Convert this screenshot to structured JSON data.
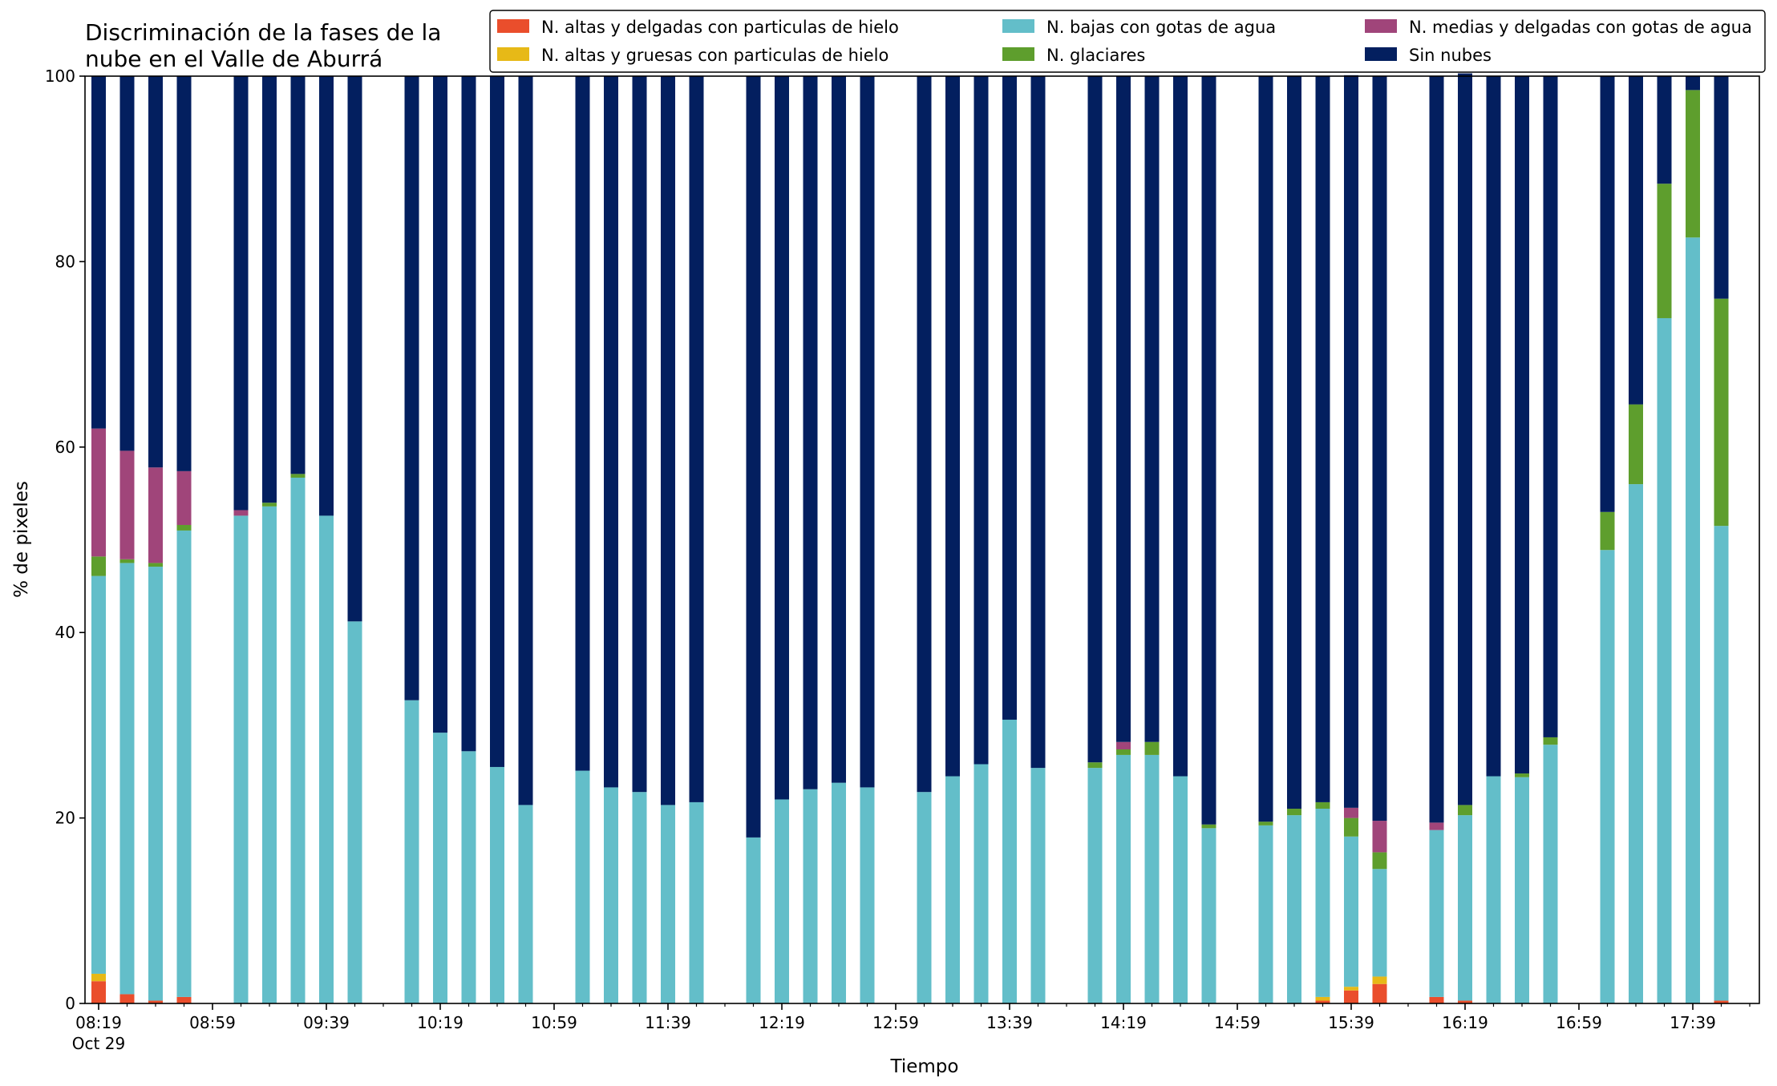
{
  "chart_data": {
    "type": "bar",
    "stacked": true,
    "title": "Discriminación de la fases de la nube en el Valle de Aburrá",
    "title_lines": [
      "Discriminación de la fases de la",
      "nube en el Valle de Aburrá"
    ],
    "xlabel": "Tiempo",
    "ylabel": "% de pixeles",
    "ylim": [
      0,
      100
    ],
    "yticks": [
      0,
      20,
      40,
      60,
      80,
      100
    ],
    "xlim_minutes": [
      0,
      580
    ],
    "xticks": [
      {
        "minute": 0,
        "label": "08:19",
        "sublabel": "Oct 29"
      },
      {
        "minute": 40,
        "label": "08:59"
      },
      {
        "minute": 80,
        "label": "09:39"
      },
      {
        "minute": 120,
        "label": "10:19"
      },
      {
        "minute": 160,
        "label": "10:59"
      },
      {
        "minute": 200,
        "label": "11:39"
      },
      {
        "minute": 240,
        "label": "12:19"
      },
      {
        "minute": 280,
        "label": "12:59"
      },
      {
        "minute": 320,
        "label": "13:39"
      },
      {
        "minute": 360,
        "label": "14:19"
      },
      {
        "minute": 400,
        "label": "14:59"
      },
      {
        "minute": 440,
        "label": "15:39"
      },
      {
        "minute": 480,
        "label": "16:19"
      },
      {
        "minute": 520,
        "label": "16:59"
      },
      {
        "minute": 560,
        "label": "17:39"
      }
    ],
    "x_minutes": [
      0,
      10,
      20,
      30,
      50,
      60,
      70,
      80,
      90,
      110,
      120,
      130,
      140,
      150,
      170,
      180,
      190,
      200,
      210,
      230,
      240,
      250,
      260,
      270,
      290,
      300,
      310,
      320,
      330,
      350,
      360,
      370,
      380,
      390,
      410,
      420,
      430,
      440,
      450,
      470,
      480,
      490,
      500,
      510,
      530,
      540,
      550,
      560,
      570
    ],
    "legend_position": "top-right",
    "series": [
      {
        "name": "N. altas y delgadas con particulas de hielo",
        "color": "#ea4e2c",
        "values": [
          2.4,
          1.0,
          0.3,
          0.7,
          0,
          0,
          0,
          0,
          0,
          0,
          0,
          0,
          0,
          0,
          0,
          0,
          0,
          0,
          0,
          0,
          0,
          0,
          0,
          0,
          0,
          0,
          0,
          0,
          0,
          0,
          0,
          0,
          0,
          0,
          0,
          0,
          0.3,
          1.4,
          2.1,
          0.7,
          0.3,
          0,
          0,
          0,
          0,
          0,
          0,
          0,
          0.3
        ]
      },
      {
        "name": "N. altas y gruesas con particulas de hielo",
        "color": "#e7b917",
        "values": [
          0.8,
          0,
          0,
          0,
          0,
          0,
          0,
          0,
          0,
          0,
          0,
          0,
          0,
          0,
          0,
          0,
          0,
          0,
          0,
          0,
          0,
          0,
          0,
          0,
          0,
          0,
          0,
          0,
          0,
          0,
          0,
          0,
          0,
          0,
          0,
          0,
          0.4,
          0.4,
          0.8,
          0,
          0,
          0,
          0,
          0,
          0,
          0,
          0,
          0,
          0
        ]
      },
      {
        "name": "N. bajas con gotas de agua",
        "color": "#63bec9",
        "values": [
          42.9,
          46.5,
          46.8,
          50.3,
          52.6,
          53.6,
          56.7,
          52.6,
          41.2,
          32.7,
          29.2,
          27.2,
          25.5,
          21.4,
          25.1,
          23.3,
          22.8,
          21.4,
          21.7,
          17.9,
          22.0,
          23.1,
          23.8,
          23.3,
          22.8,
          24.5,
          25.8,
          30.6,
          25.4,
          25.4,
          26.8,
          26.8,
          24.5,
          18.9,
          19.2,
          20.3,
          20.3,
          16.2,
          11.6,
          18.0,
          20.0,
          24.5,
          24.4,
          27.9,
          48.9,
          56.0,
          73.9,
          82.6,
          51.2
        ]
      },
      {
        "name": "N. glaciares",
        "color": "#5e9e2d",
        "values": [
          2.1,
          0.4,
          0.4,
          0.6,
          0,
          0.4,
          0.4,
          0,
          0,
          0,
          0,
          0,
          0,
          0,
          0,
          0,
          0,
          0,
          0,
          0,
          0,
          0,
          0,
          0,
          0,
          0,
          0,
          0,
          0,
          0.6,
          0.6,
          1.4,
          0,
          0.4,
          0.4,
          0.7,
          0.7,
          2.0,
          1.8,
          0,
          1.1,
          0,
          0.4,
          0.8,
          4.1,
          8.6,
          14.5,
          15.9,
          24.5
        ]
      },
      {
        "name": "N. medias y delgadas con gotas de agua",
        "color": "#a0457a",
        "values": [
          13.8,
          11.7,
          10.3,
          5.8,
          0.6,
          0,
          0,
          0,
          0,
          0,
          0,
          0,
          0,
          0,
          0,
          0,
          0,
          0,
          0,
          0,
          0,
          0,
          0,
          0,
          0,
          0,
          0,
          0,
          0,
          0,
          0.8,
          0,
          0,
          0,
          0,
          0,
          0,
          1.1,
          3.4,
          0.8,
          0,
          0,
          0,
          0,
          0,
          0,
          0,
          0,
          0
        ]
      },
      {
        "name": "Sin nubes",
        "color": "#031f5f",
        "values": [
          38.0,
          40.4,
          42.2,
          42.6,
          46.8,
          46.0,
          42.9,
          47.4,
          58.8,
          67.3,
          70.8,
          72.8,
          74.5,
          78.6,
          74.9,
          76.7,
          77.2,
          78.6,
          78.3,
          82.1,
          78.0,
          76.9,
          76.2,
          76.7,
          77.2,
          75.5,
          74.2,
          69.4,
          74.6,
          74.0,
          71.8,
          71.8,
          75.5,
          80.7,
          80.4,
          79.0,
          78.3,
          79.0,
          80.3,
          80.5,
          78.9,
          75.5,
          75.2,
          71.3,
          47.0,
          35.4,
          11.6,
          1.5,
          24.0
        ]
      }
    ]
  }
}
